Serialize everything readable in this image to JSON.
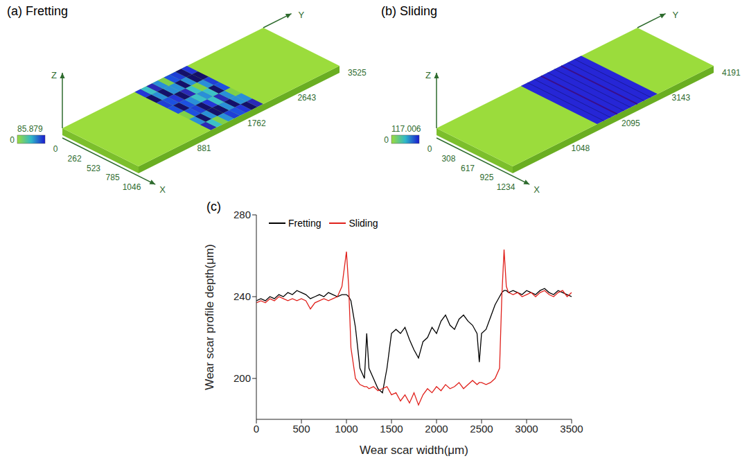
{
  "panels": [
    {
      "title": "(a) Fretting",
      "x_label": "X",
      "y_label": "Y",
      "z_label": "Z",
      "x_ticks": [
        0,
        262,
        523,
        785,
        1046
      ],
      "y_ticks": [
        881,
        1762,
        2643,
        3525
      ],
      "colorbar": {
        "max": 85.879,
        "min": 0
      }
    },
    {
      "title": "(b) Sliding",
      "x_label": "X",
      "y_label": "Y",
      "z_label": "Z",
      "x_ticks": [
        0,
        308,
        617,
        925,
        1234
      ],
      "y_ticks": [
        1048,
        2095,
        3143,
        4191
      ],
      "colorbar": {
        "max": 117.006,
        "min": 0
      }
    }
  ],
  "chart_data": {
    "type": "line",
    "title": "(c)",
    "x_label": "Wear scar width(μm)",
    "y_label": "Wear scar profile depth(μm)",
    "xlim": [
      0,
      3500
    ],
    "xticks": [
      0,
      500,
      1000,
      1500,
      2000,
      2500,
      3000,
      3500
    ],
    "ylim": [
      180,
      280
    ],
    "yticks": [
      200,
      240,
      280
    ],
    "grid": false,
    "legend": "top-left",
    "x": [
      0,
      50,
      100,
      150,
      200,
      250,
      300,
      350,
      400,
      450,
      500,
      550,
      600,
      650,
      700,
      750,
      800,
      850,
      900,
      950,
      1000,
      1025,
      1050,
      1100,
      1150,
      1200,
      1225,
      1250,
      1300,
      1350,
      1400,
      1450,
      1500,
      1550,
      1600,
      1650,
      1700,
      1750,
      1800,
      1850,
      1900,
      1950,
      2000,
      2050,
      2100,
      2150,
      2200,
      2250,
      2300,
      2350,
      2400,
      2450,
      2475,
      2500,
      2550,
      2600,
      2650,
      2700,
      2725,
      2750,
      2775,
      2800,
      2850,
      2900,
      2950,
      3000,
      3050,
      3100,
      3150,
      3200,
      3250,
      3300,
      3350,
      3400,
      3450,
      3500
    ],
    "series": [
      {
        "name": "Fretting",
        "color": "#000000",
        "values": [
          238,
          239,
          238,
          240,
          239,
          241,
          240,
          242,
          241,
          243,
          242,
          241,
          239,
          240,
          241,
          240,
          242,
          241,
          240,
          241,
          241,
          240,
          238,
          225,
          205,
          200,
          222,
          205,
          200,
          195,
          193,
          205,
          222,
          224,
          222,
          225,
          219,
          214,
          210,
          218,
          220,
          225,
          222,
          228,
          231,
          226,
          224,
          229,
          231,
          228,
          226,
          222,
          208,
          222,
          224,
          230,
          236,
          240,
          242,
          243,
          243,
          242,
          243,
          242,
          241,
          243,
          242,
          241,
          243,
          244,
          242,
          241,
          243,
          242,
          241,
          240
        ]
      },
      {
        "name": "Sliding",
        "color": "#e0201b",
        "values": [
          237,
          238,
          237,
          239,
          238,
          240,
          239,
          238,
          239,
          238,
          239,
          238,
          234,
          237,
          238,
          239,
          238,
          239,
          240,
          245,
          262,
          245,
          215,
          200,
          197,
          196,
          196,
          195,
          196,
          194,
          195,
          196,
          192,
          193,
          189,
          192,
          188,
          193,
          187,
          192,
          195,
          193,
          196,
          194,
          197,
          195,
          196,
          198,
          195,
          197,
          199,
          197,
          198,
          198,
          197,
          198,
          200,
          205,
          240,
          263,
          245,
          242,
          241,
          242,
          240,
          241,
          242,
          240,
          242,
          243,
          241,
          240,
          242,
          243,
          240,
          242
        ]
      }
    ]
  }
}
